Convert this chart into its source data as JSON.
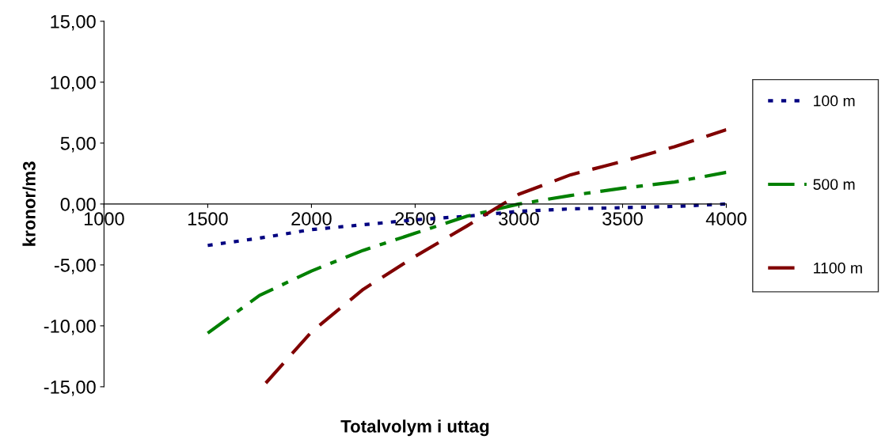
{
  "chart_data": {
    "type": "line",
    "xlabel": "Totalvolym i uttag",
    "ylabel": "kronor/m3",
    "xlim": [
      1000,
      4000
    ],
    "xticks": [
      1000,
      1500,
      2000,
      2500,
      3000,
      3500,
      4000
    ],
    "ylim": [
      -15,
      15
    ],
    "yticks": [
      {
        "value": -15,
        "label": "-15,00"
      },
      {
        "value": -10,
        "label": "-10,00"
      },
      {
        "value": -5,
        "label": "-5,00"
      },
      {
        "value": 0,
        "label": "0,00"
      },
      {
        "value": 5,
        "label": "5,00"
      },
      {
        "value": 10,
        "label": "10,00"
      },
      {
        "value": 15,
        "label": "15,00"
      }
    ],
    "grid": false,
    "legend": "right",
    "marker": "none",
    "series": [
      {
        "name": "100 m",
        "color": "#000080",
        "line_style": "dotted",
        "x": [
          1500,
          1750,
          2000,
          2250,
          2500,
          2750,
          3000,
          3250,
          3500,
          3750,
          4000
        ],
        "values": [
          -3.4,
          -2.8,
          -2.1,
          -1.7,
          -1.3,
          -1.0,
          -0.6,
          -0.4,
          -0.3,
          -0.2,
          0.0
        ]
      },
      {
        "name": "500 m",
        "color": "#008000",
        "line_style": "dashdot",
        "x": [
          1500,
          1750,
          2000,
          2250,
          2500,
          2750,
          3000,
          3250,
          3500,
          3750,
          4000
        ],
        "values": [
          -10.6,
          -7.5,
          -5.5,
          -3.8,
          -2.4,
          -1.0,
          0.0,
          0.7,
          1.3,
          1.8,
          2.6
        ]
      },
      {
        "name": "1100 m",
        "color": "#800000",
        "line_style": "dashed",
        "x": [
          1780,
          2000,
          2250,
          2500,
          2750,
          3000,
          3250,
          3500,
          3750,
          4000
        ],
        "values": [
          -14.7,
          -10.5,
          -7.0,
          -4.3,
          -1.8,
          0.8,
          2.4,
          3.5,
          4.7,
          6.1
        ]
      }
    ]
  }
}
